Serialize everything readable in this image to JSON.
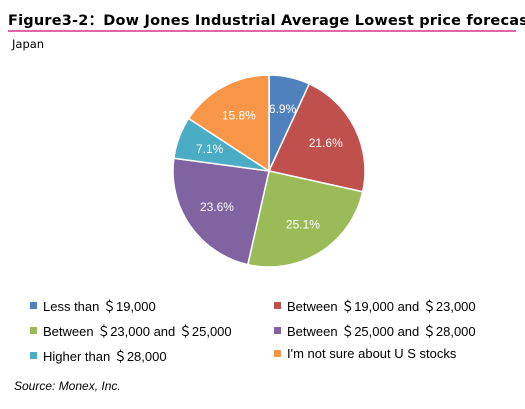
{
  "header": {
    "title": "Figure3-2：Dow Jones Industrial Average Lowest price forecast",
    "subtitle": "Japan"
  },
  "footer": {
    "source": "Source: Monex, Inc."
  },
  "colors": {
    "rule": "#e066a8"
  },
  "chart_data": {
    "type": "pie",
    "legend_position": "bottom",
    "slices": [
      {
        "label": "Less than ＄19,000",
        "value": 6.9,
        "display": "6.9%",
        "color": "#4f81bd"
      },
      {
        "label": "Between ＄19,000  and ＄23,000",
        "value": 21.6,
        "display": "21.6%",
        "color": "#c0504d"
      },
      {
        "label": "Between ＄23,000  and ＄25,000",
        "value": 25.1,
        "display": "25.1%",
        "color": "#9bbb59"
      },
      {
        "label": "Between ＄25,000  and ＄28,000",
        "value": 23.6,
        "display": "23.6%",
        "color": "#8064a2"
      },
      {
        "label": "Higher than ＄28,000",
        "value": 7.1,
        "display": "7.1%",
        "color": "#4bacc6"
      },
      {
        "label": "I'm not sure about U S stocks",
        "value": 15.8,
        "display": "15.8%",
        "color": "#f79646"
      }
    ]
  }
}
